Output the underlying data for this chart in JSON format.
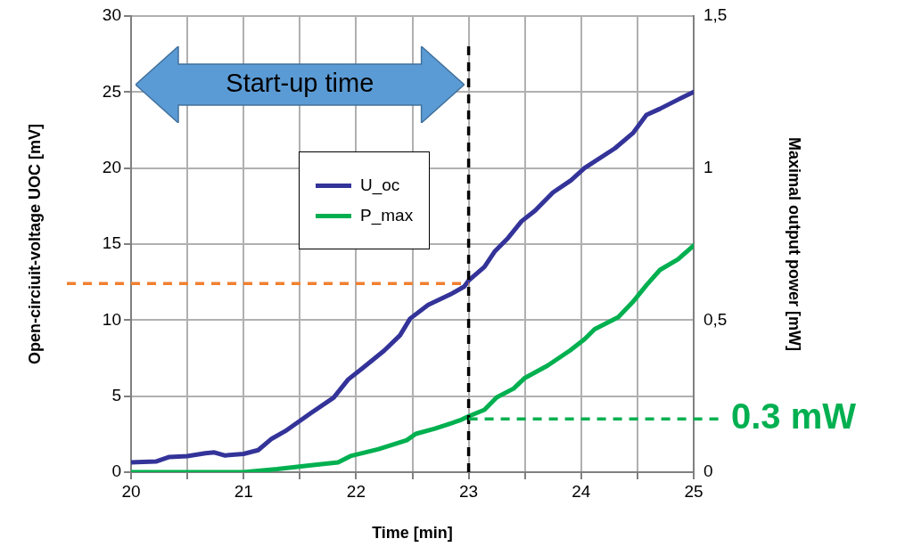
{
  "chart_data": {
    "type": "line",
    "xlabel": "Time [min]",
    "ylabel": "Open-circiuit-voltage UOC [mV]",
    "y2label": "Maximal output power [mW]",
    "annotations": [
      "Start-up time"
    ],
    "xlim": [
      20,
      25
    ],
    "xticks": [
      20,
      {
        "value": 20.5,
        "label": null
      },
      21,
      {
        "value": 21.5,
        "label": null
      },
      22,
      {
        "value": 22.5,
        "label": null
      },
      23,
      {
        "value": 23.5,
        "label": null
      },
      24,
      {
        "value": 24.5,
        "label": null
      },
      25
    ],
    "ylim": [
      0,
      30
    ],
    "yticks": [
      0,
      5,
      10,
      15,
      20,
      25,
      30
    ],
    "y2lim": [
      0,
      1.5
    ],
    "y2ticks": [
      0,
      {
        "value": 0.5,
        "label": "0,5"
      },
      1,
      {
        "value": 1.5,
        "label": "1,5"
      }
    ],
    "grid": true,
    "legend": "center left",
    "line_style": "solid",
    "marker": "none",
    "series": [
      {
        "name": "U_oc",
        "color": "#333399",
        "x": [
          20,
          20.22,
          20.34,
          20.5,
          20.66,
          20.74,
          20.83,
          21.0,
          21.13,
          21.25,
          21.37,
          21.6,
          21.8,
          21.93,
          22.05,
          22.25,
          22.39,
          22.48,
          22.64,
          22.84,
          22.96,
          23.0,
          23.14,
          23.23,
          23.35,
          23.47,
          23.59,
          23.75,
          23.91,
          24.03,
          24.3,
          24.46,
          24.58,
          24.7,
          24.86,
          25.0
        ],
        "values": [
          0.65,
          0.7,
          1.0,
          1.05,
          1.25,
          1.3,
          1.1,
          1.2,
          1.45,
          2.2,
          2.7,
          3.9,
          4.9,
          6.1,
          6.8,
          8.0,
          9.0,
          10.1,
          11.0,
          11.7,
          12.2,
          12.6,
          13.5,
          14.5,
          15.4,
          16.5,
          17.2,
          18.4,
          19.2,
          20.0,
          21.3,
          22.3,
          23.5,
          23.9,
          24.5,
          25.0
        ]
      },
      {
        "name": "P_max",
        "color": "#00b050",
        "axis": "y2",
        "x": [
          20,
          21.0,
          21.3,
          21.6,
          21.84,
          21.95,
          22.2,
          22.45,
          22.53,
          22.7,
          22.92,
          23.0,
          23.14,
          23.25,
          23.4,
          23.5,
          23.7,
          23.9,
          24.03,
          24.12,
          24.33,
          24.46,
          24.58,
          24.7,
          24.86,
          25.0
        ],
        "values": [
          0,
          0,
          0.01,
          0.023,
          0.032,
          0.053,
          0.076,
          0.105,
          0.126,
          0.143,
          0.17,
          0.184,
          0.205,
          0.246,
          0.275,
          0.31,
          0.35,
          0.4,
          0.437,
          0.47,
          0.51,
          0.56,
          0.615,
          0.665,
          0.7,
          0.745
        ]
      }
    ],
    "ref_lines": [
      {
        "axis": "x",
        "value": 23,
        "color": "#000000",
        "line_style": "dashed"
      },
      {
        "axis": "y",
        "value": 12.4,
        "color": "#f08030",
        "line_style": "dashed"
      },
      {
        "axis": "y2",
        "value": 0.175,
        "label": "0.3 mW",
        "color": "#00b050",
        "line_style": "dashed"
      }
    ]
  }
}
